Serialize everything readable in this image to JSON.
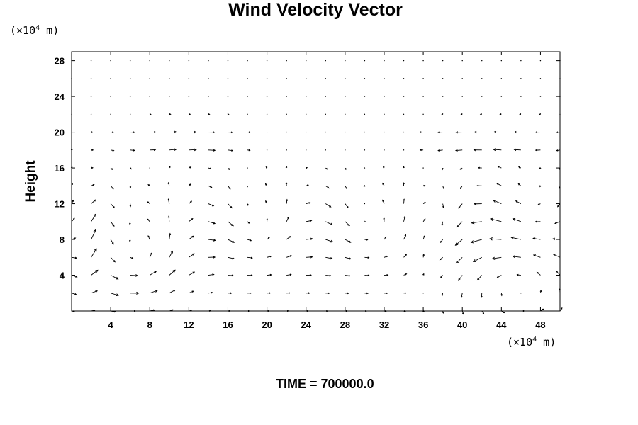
{
  "chart_data": {
    "type": "vector_field",
    "title": "Wind Velocity Vector",
    "ylabel": "Height",
    "y_unit_prefix": "(×10",
    "y_unit_exp": "4",
    "y_unit_suffix": " m)",
    "x_unit_prefix": "(×10",
    "x_unit_exp": "4",
    "x_unit_suffix": " m)",
    "footer": "TIME = 700000.0",
    "xlim": [
      0,
      50
    ],
    "ylim": [
      0,
      29
    ],
    "x_ticks": [
      4,
      8,
      12,
      16,
      20,
      24,
      28,
      32,
      36,
      40,
      44,
      48
    ],
    "y_ticks": [
      4,
      8,
      12,
      16,
      20,
      24,
      28
    ],
    "grid_spacing": 2,
    "grid": false,
    "features": [
      {
        "kind": "vortex",
        "center": [
          6,
          5
        ],
        "radius": [
          4.5,
          4
        ],
        "direction": "counterclockwise"
      },
      {
        "kind": "vortex",
        "center": [
          46,
          4.5
        ],
        "radius": [
          7,
          6
        ],
        "direction": "counterclockwise"
      },
      {
        "kind": "convergence",
        "x": 36,
        "height_range": [
          0,
          14
        ]
      },
      {
        "kind": "jet",
        "height": 19.5,
        "x_range": [
          4,
          18
        ],
        "direction": "east"
      },
      {
        "kind": "jet",
        "height": 19.5,
        "x_range": [
          36,
          50
        ],
        "direction": "west"
      }
    ]
  }
}
